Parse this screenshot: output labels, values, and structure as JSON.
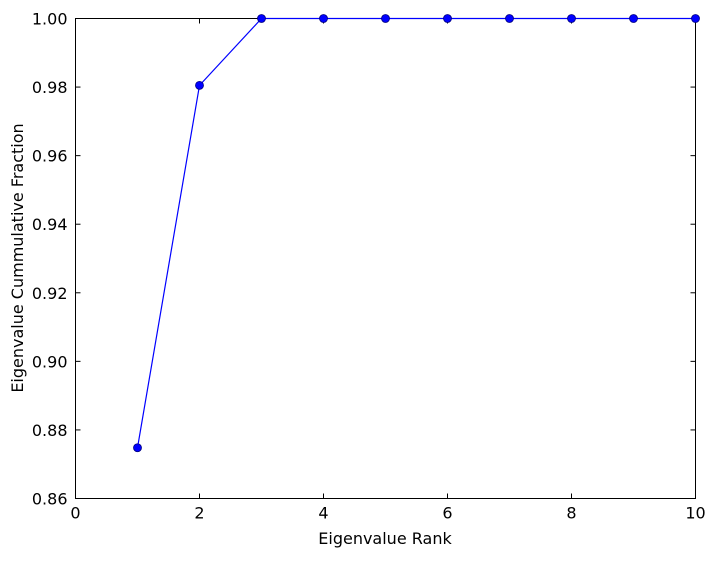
{
  "chart_data": {
    "type": "line",
    "title": "",
    "xlabel": "Eigenvalue Rank",
    "ylabel": "Eigenvalue Cummulative Fraction",
    "xlim": [
      0,
      10
    ],
    "ylim": [
      0.86,
      1.0
    ],
    "x_ticks": [
      0,
      2,
      4,
      6,
      8,
      10
    ],
    "x_tick_labels": [
      "0",
      "2",
      "4",
      "6",
      "8",
      "10"
    ],
    "y_ticks": [
      0.86,
      0.88,
      0.9,
      0.92,
      0.94,
      0.96,
      0.98,
      1.0
    ],
    "y_tick_labels": [
      "0.86",
      "0.88",
      "0.90",
      "0.92",
      "0.94",
      "0.96",
      "0.98",
      "1.00"
    ],
    "grid": false,
    "series": [
      {
        "x": [
          1,
          2,
          3,
          4,
          5,
          6,
          7,
          8,
          9,
          10
        ],
        "y": [
          0.8748,
          0.9805,
          1.0,
          1.0,
          1.0,
          1.0,
          1.0,
          1.0,
          1.0,
          1.0
        ],
        "color": "#0000ff",
        "marker": "circle"
      }
    ]
  }
}
